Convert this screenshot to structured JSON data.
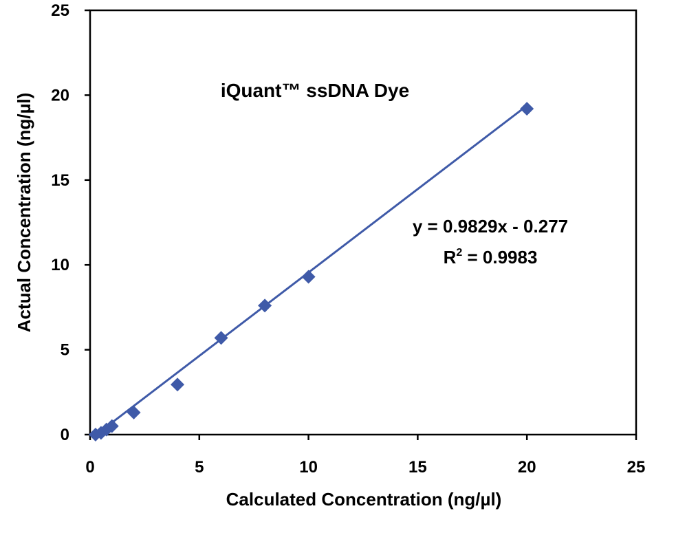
{
  "chart_data": {
    "type": "scatter",
    "title": "iQuant™ ssDNA Dye",
    "xlabel": "Calculated Concentration (ng/µl)",
    "ylabel": "Actual Concentration  (ng/µl)",
    "xlim": [
      0,
      25
    ],
    "ylim": [
      0,
      25
    ],
    "xticks": [
      0,
      5,
      10,
      15,
      20,
      25
    ],
    "yticks": [
      0,
      5,
      10,
      15,
      20,
      25
    ],
    "grid": false,
    "legend": "none",
    "series": [
      {
        "marker": "diamond",
        "color": "#3F5AA8",
        "points": [
          {
            "x": 0.25,
            "y": 0.0
          },
          {
            "x": 0.5,
            "y": 0.1
          },
          {
            "x": 0.75,
            "y": 0.3
          },
          {
            "x": 1.0,
            "y": 0.5
          },
          {
            "x": 2.0,
            "y": 1.3
          },
          {
            "x": 4.0,
            "y": 2.95
          },
          {
            "x": 6.0,
            "y": 5.7
          },
          {
            "x": 8.0,
            "y": 7.6
          },
          {
            "x": 10.0,
            "y": 9.3
          },
          {
            "x": 20.0,
            "y": 19.2
          }
        ]
      }
    ],
    "trendline": {
      "type": "linear",
      "slope": 0.9829,
      "intercept": -0.277,
      "x_range": [
        0.25,
        20.0
      ],
      "color": "#3F5AA8"
    },
    "annotations": {
      "equation": "y = 0.9829x - 0.277",
      "r2_prefix": "R",
      "r2_sup": "2",
      "r2_value": " = 0.9983"
    }
  }
}
